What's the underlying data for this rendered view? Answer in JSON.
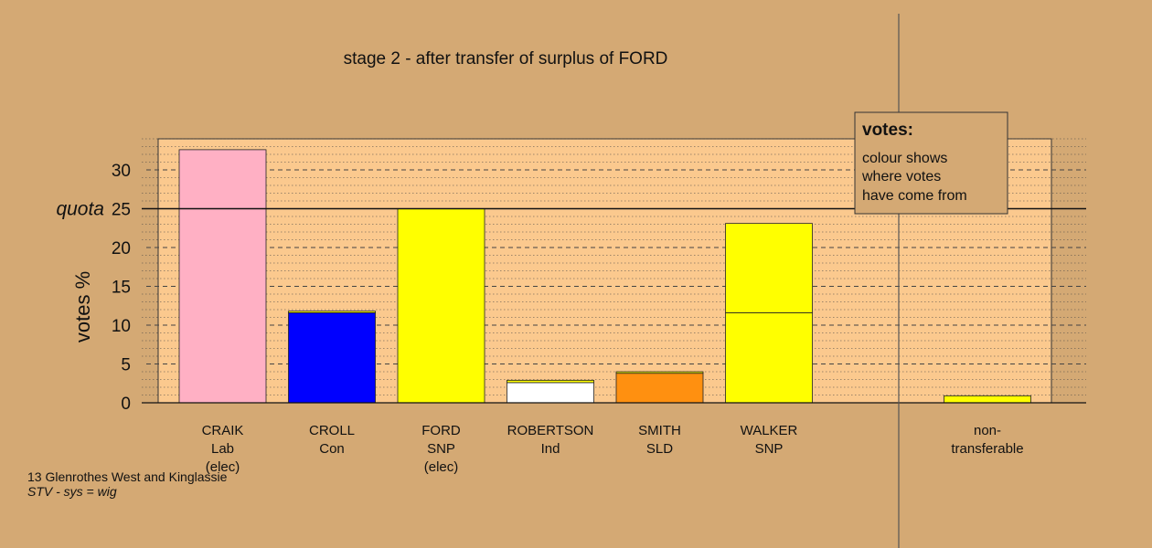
{
  "colors": {
    "background": "#d4a974",
    "plot_background": "#fbc98e",
    "legend_background": "#d4a974"
  },
  "chart_data": {
    "type": "bar",
    "title": "stage 2 - after transfer of surplus of FORD",
    "ylabel": "votes %",
    "ylim": [
      0,
      34
    ],
    "yticks": [
      0,
      5,
      10,
      15,
      20,
      25,
      30
    ],
    "quota": 25,
    "quota_label": "quota",
    "categories": [
      {
        "lines": [
          "CRAIK",
          "Lab",
          "(elec)"
        ]
      },
      {
        "lines": [
          "CROLL",
          "Con"
        ]
      },
      {
        "lines": [
          "FORD",
          "SNP",
          "(elec)"
        ]
      },
      {
        "lines": [
          "ROBERTSON",
          "Ind"
        ]
      },
      {
        "lines": [
          "SMITH",
          "SLD"
        ]
      },
      {
        "lines": [
          "WALKER",
          "SNP"
        ]
      },
      {
        "lines": []
      },
      {
        "lines": [
          "non-",
          "transferable"
        ]
      }
    ],
    "bars": [
      [
        {
          "value": 32.6,
          "color": "#ffb0c4"
        }
      ],
      [
        {
          "value": 11.6,
          "color": "#0000ff"
        },
        {
          "value": 0.2,
          "color": "#ffff00"
        }
      ],
      [
        {
          "value": 25.0,
          "color": "#ffff00"
        }
      ],
      [
        {
          "value": 2.6,
          "color": "#ffffff"
        },
        {
          "value": 0.3,
          "color": "#ffff00"
        }
      ],
      [
        {
          "value": 3.8,
          "color": "#ff9010"
        },
        {
          "value": 0.2,
          "color": "#ffff00"
        }
      ],
      [
        {
          "value": 11.6,
          "color": "#ffff00"
        },
        {
          "value": 11.5,
          "color": "#ffff00"
        }
      ],
      [],
      [
        {
          "value": 0.9,
          "color": "#ffff00"
        }
      ]
    ]
  },
  "legend": {
    "title": "votes:",
    "lines": [
      "colour shows",
      "where votes",
      "have come from"
    ]
  },
  "footer": {
    "line1": "13 Glenrothes West and Kinglassie",
    "line2": "STV - sys = wig"
  }
}
